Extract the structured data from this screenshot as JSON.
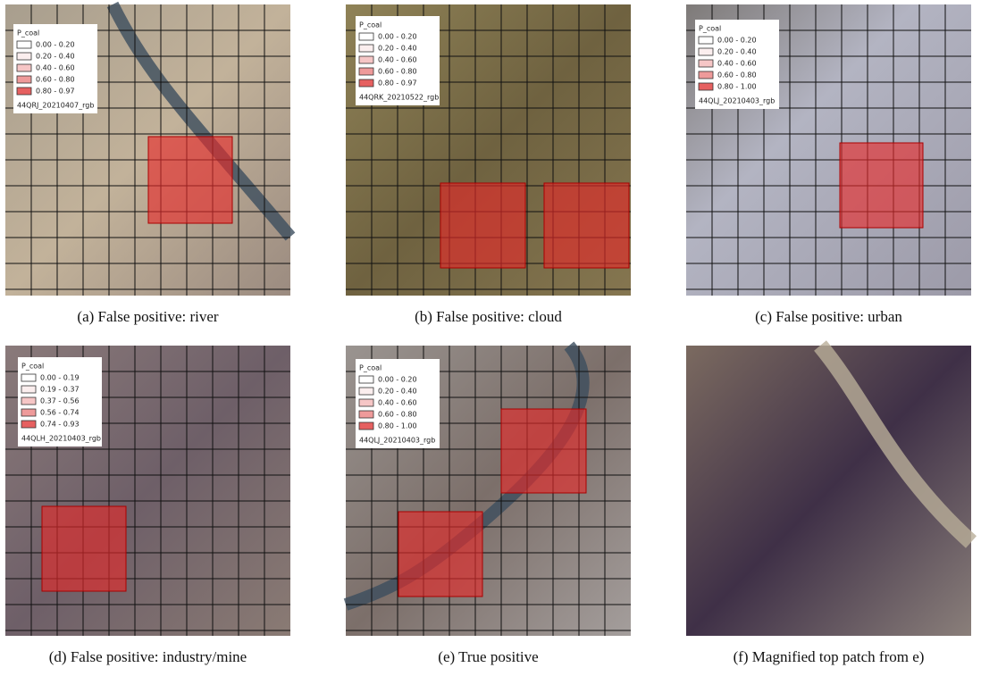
{
  "panels": [
    {
      "caption": "(a) False positive: river",
      "legend": {
        "title": "P_coal",
        "entries": [
          "0.00 - 0.20",
          "0.20 - 0.40",
          "0.40 - 0.60",
          "0.60 - 0.80",
          "0.80 - 0.97"
        ],
        "source": "44QRJ_20210407_rgb"
      }
    },
    {
      "caption": "(b) False positive: cloud",
      "legend": {
        "title": "P_coal",
        "entries": [
          "0.00 - 0.20",
          "0.20 - 0.40",
          "0.40 - 0.60",
          "0.60 - 0.80",
          "0.80 - 0.97"
        ],
        "source": "44QRK_20210522_rgb"
      }
    },
    {
      "caption": "(c) False positive: urban",
      "legend": {
        "title": "P_coal",
        "entries": [
          "0.00 - 0.20",
          "0.20 - 0.40",
          "0.40 - 0.60",
          "0.60 - 0.80",
          "0.80 - 1.00"
        ],
        "source": "44QLJ_20210403_rgb"
      }
    },
    {
      "caption": "(d) False positive: industry/mine",
      "legend": {
        "title": "P_coal",
        "entries": [
          "0.00 - 0.19",
          "0.19 - 0.37",
          "0.37 - 0.56",
          "0.56 - 0.74",
          "0.74 - 0.93"
        ],
        "source": "44QLH_20210403_rgb"
      }
    },
    {
      "caption": "(e) True positive",
      "legend": {
        "title": "P_coal",
        "entries": [
          "0.00 - 0.20",
          "0.20 - 0.40",
          "0.40 - 0.60",
          "0.60 - 0.80",
          "0.80 - 1.00"
        ],
        "source": "44QLJ_20210403_rgb"
      }
    },
    {
      "caption": "(f) Magnified top patch from e)"
    }
  ]
}
